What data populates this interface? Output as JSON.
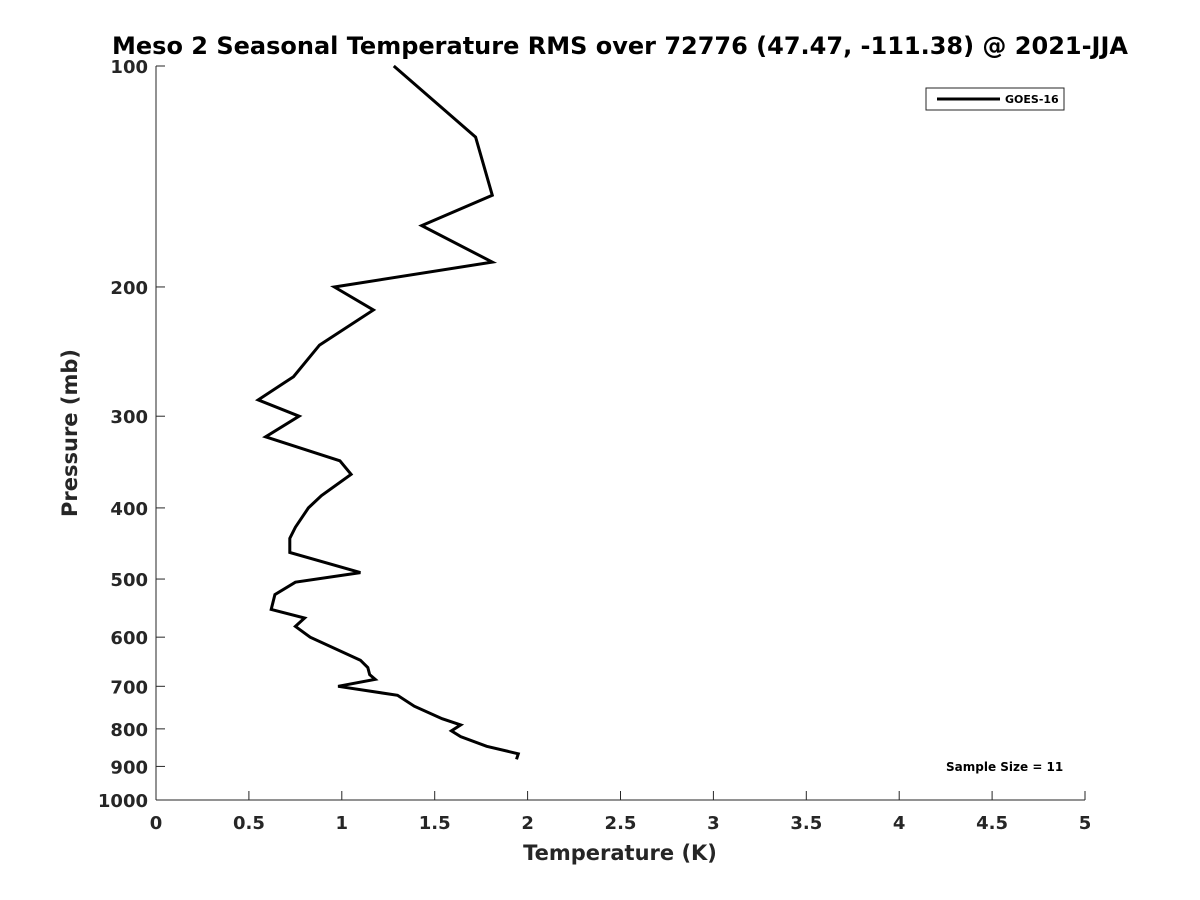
{
  "chart_data": {
    "type": "line",
    "title": "Meso 2 Seasonal Temperature RMS over 72776 (47.47, -111.38) @ 2021-JJA",
    "xlabel": "Temperature (K)",
    "ylabel": "Pressure (mb)",
    "xlim": [
      0,
      5
    ],
    "ylim": [
      100,
      1000
    ],
    "y_scale": "log",
    "y_reversed": true,
    "grid": false,
    "x_ticks": [
      "0",
      "0.5",
      "1",
      "1.5",
      "2",
      "2.5",
      "3",
      "3.5",
      "4",
      "4.5",
      "5"
    ],
    "y_ticks": [
      "100",
      "200",
      "300",
      "400",
      "500",
      "600",
      "700",
      "800",
      "900",
      "1000"
    ],
    "legend": {
      "position": "top-right",
      "entries": [
        "GOES-16"
      ]
    },
    "annotation": "Sample Size = 11",
    "line_color": "#000000",
    "series": [
      {
        "name": "GOES-16",
        "points": [
          {
            "x": 1.28,
            "y": 100
          },
          {
            "x": 1.72,
            "y": 125
          },
          {
            "x": 1.81,
            "y": 150
          },
          {
            "x": 1.43,
            "y": 165
          },
          {
            "x": 1.81,
            "y": 185
          },
          {
            "x": 0.96,
            "y": 200
          },
          {
            "x": 1.17,
            "y": 215
          },
          {
            "x": 0.88,
            "y": 240
          },
          {
            "x": 0.74,
            "y": 265
          },
          {
            "x": 0.55,
            "y": 285
          },
          {
            "x": 0.77,
            "y": 300
          },
          {
            "x": 0.59,
            "y": 320
          },
          {
            "x": 0.99,
            "y": 345
          },
          {
            "x": 1.05,
            "y": 360
          },
          {
            "x": 0.89,
            "y": 385
          },
          {
            "x": 0.82,
            "y": 400
          },
          {
            "x": 0.75,
            "y": 425
          },
          {
            "x": 0.72,
            "y": 440
          },
          {
            "x": 0.72,
            "y": 460
          },
          {
            "x": 1.1,
            "y": 490
          },
          {
            "x": 0.75,
            "y": 505
          },
          {
            "x": 0.64,
            "y": 525
          },
          {
            "x": 0.62,
            "y": 550
          },
          {
            "x": 0.8,
            "y": 565
          },
          {
            "x": 0.75,
            "y": 580
          },
          {
            "x": 0.83,
            "y": 600
          },
          {
            "x": 1.1,
            "y": 645
          },
          {
            "x": 1.14,
            "y": 660
          },
          {
            "x": 1.15,
            "y": 675
          },
          {
            "x": 1.18,
            "y": 685
          },
          {
            "x": 0.98,
            "y": 700
          },
          {
            "x": 1.3,
            "y": 720
          },
          {
            "x": 1.39,
            "y": 745
          },
          {
            "x": 1.54,
            "y": 775
          },
          {
            "x": 1.64,
            "y": 790
          },
          {
            "x": 1.59,
            "y": 805
          },
          {
            "x": 1.64,
            "y": 820
          },
          {
            "x": 1.78,
            "y": 845
          },
          {
            "x": 1.95,
            "y": 865
          },
          {
            "x": 1.94,
            "y": 880
          }
        ]
      }
    ]
  }
}
